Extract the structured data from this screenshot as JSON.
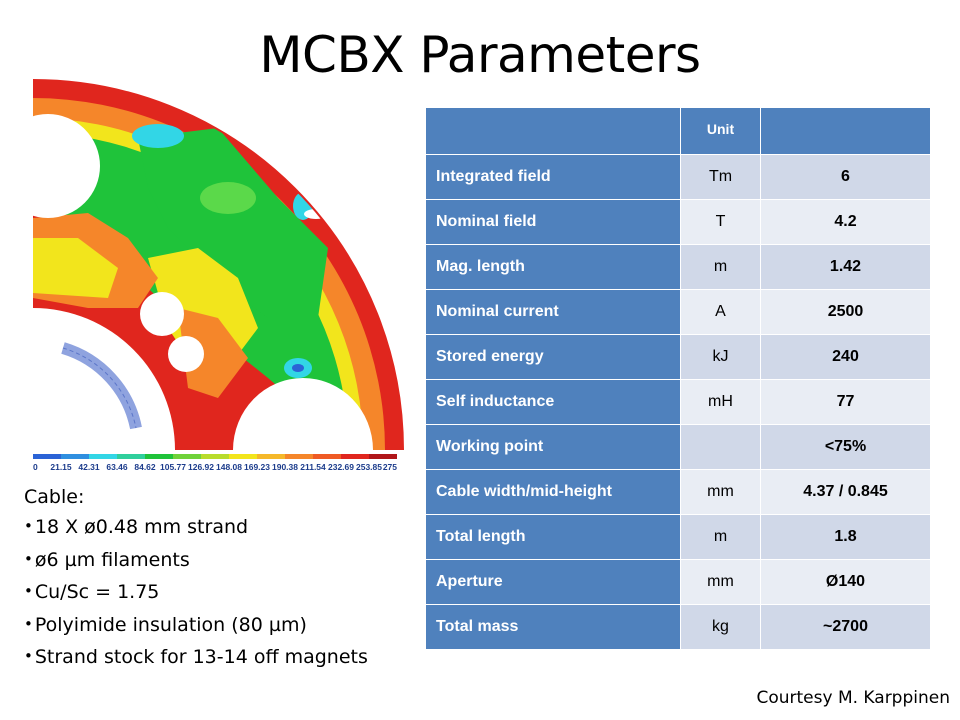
{
  "slide": {
    "title": "MCBX Parameters",
    "courtesy": "Courtesy M. Karppinen"
  },
  "figure": {
    "scale_labels": [
      "0",
      "21.15",
      "42.31",
      "63.46",
      "84.62",
      "105.77",
      "126.92",
      "148.08",
      "169.23",
      "190.38",
      "211.54",
      "232.69",
      "253.85",
      "275"
    ],
    "colors": {
      "red": "#e0261e",
      "orange": "#f5862a",
      "yellow": "#f2e51c",
      "green": "#1fc33a",
      "cyan": "#32d6e6",
      "blue": "#2b63d6",
      "coil": "#8fa3df"
    }
  },
  "table": {
    "header": {
      "name": "",
      "unit": "Unit",
      "value": ""
    },
    "rows": [
      {
        "name": "Integrated field",
        "unit": "Tm",
        "value": "6"
      },
      {
        "name": "Nominal field",
        "unit": "T",
        "value": "4.2"
      },
      {
        "name": "Mag. length",
        "unit": "m",
        "value": "1.42"
      },
      {
        "name": "Nominal current",
        "unit": "A",
        "value": "2500"
      },
      {
        "name": "Stored energy",
        "unit": "kJ",
        "value": "240"
      },
      {
        "name": "Self inductance",
        "unit": "mH",
        "value": "77"
      },
      {
        "name": "Working point",
        "unit": "",
        "value": "<75%"
      },
      {
        "name": "Cable width/mid-height",
        "unit": "mm",
        "value": "4.37 / 0.845"
      },
      {
        "name": "Total length",
        "unit": "m",
        "value": "1.8"
      },
      {
        "name": "Aperture",
        "unit": "mm",
        "value": "Ø140"
      },
      {
        "name": "Total mass",
        "unit": "kg",
        "value": "~2700"
      }
    ],
    "colors": {
      "header": "#4f81bd",
      "band_odd": "#d0d8e8",
      "band_even": "#e9edf4"
    }
  },
  "cable": {
    "heading": "Cable:",
    "bullet_glyph": "•",
    "items": [
      "18 X ø0.48 mm strand",
      "ø6 µm filaments",
      "Cu/Sc = 1.75",
      "Polyimide insulation (80 µm)",
      "Strand stock for 13-14 off magnets"
    ]
  }
}
